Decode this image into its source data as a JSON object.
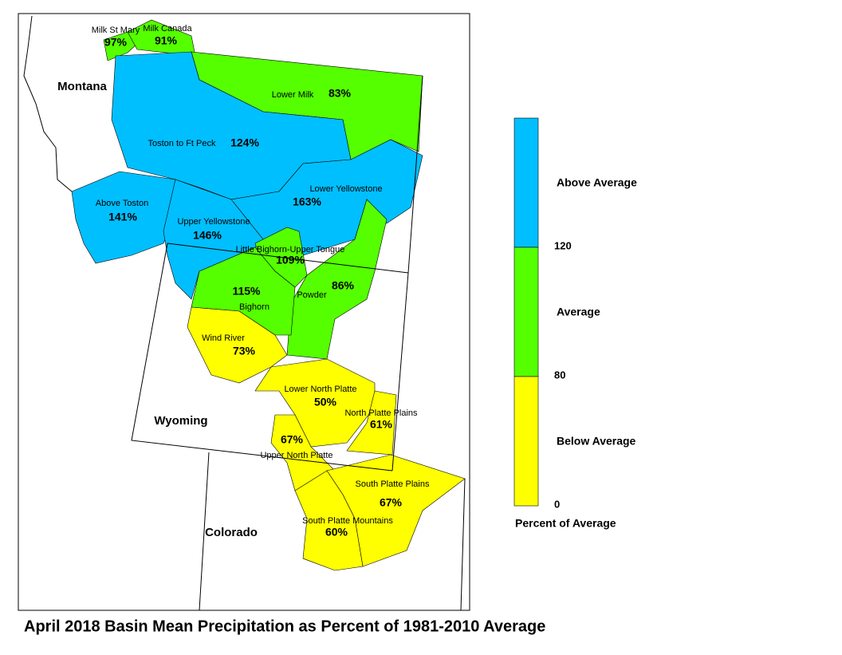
{
  "title": "April 2018 Basin Mean Precipitation as Percent of 1981-2010 Average",
  "states": [
    "Montana",
    "Wyoming",
    "Colorado"
  ],
  "basins": [
    {
      "name": "Milk St Mary",
      "value": 97,
      "value_label": "97%"
    },
    {
      "name": "Milk Canada",
      "value": 91,
      "value_label": "91%"
    },
    {
      "name": "Lower Milk",
      "value": 83,
      "value_label": "83%"
    },
    {
      "name": "Toston to Ft Peck",
      "value": 124,
      "value_label": "124%"
    },
    {
      "name": "Lower Yellowstone",
      "value": 163,
      "value_label": "163%"
    },
    {
      "name": "Above Toston",
      "value": 141,
      "value_label": "141%"
    },
    {
      "name": "Upper Yellowstone",
      "value": 146,
      "value_label": "146%"
    },
    {
      "name": "Little Bighorn-Upper Tongue",
      "value": 109,
      "value_label": "109%"
    },
    {
      "name": "Powder",
      "value": 86,
      "value_label": "86%"
    },
    {
      "name": "Bighorn",
      "value": 115,
      "value_label": "115%"
    },
    {
      "name": "Wind River",
      "value": 73,
      "value_label": "73%"
    },
    {
      "name": "Lower North Platte",
      "value": 50,
      "value_label": "50%"
    },
    {
      "name": "North Platte Plains",
      "value": 61,
      "value_label": "61%"
    },
    {
      "name": "Upper North Platte",
      "value": 67,
      "value_label": "67%"
    },
    {
      "name": "South Platte Plains",
      "value": 67,
      "value_label": "67%"
    },
    {
      "name": "South Platte Mountains",
      "value": 60,
      "value_label": "60%"
    }
  ],
  "legend": {
    "title": "Percent of Average",
    "classes": [
      {
        "label": "Above Average",
        "color": "#00bfff",
        "min": 120
      },
      {
        "label": "Average",
        "color": "#55ff00",
        "min": 80
      },
      {
        "label": "Below Average",
        "color": "#ffff00",
        "min": 0
      }
    ]
  }
}
